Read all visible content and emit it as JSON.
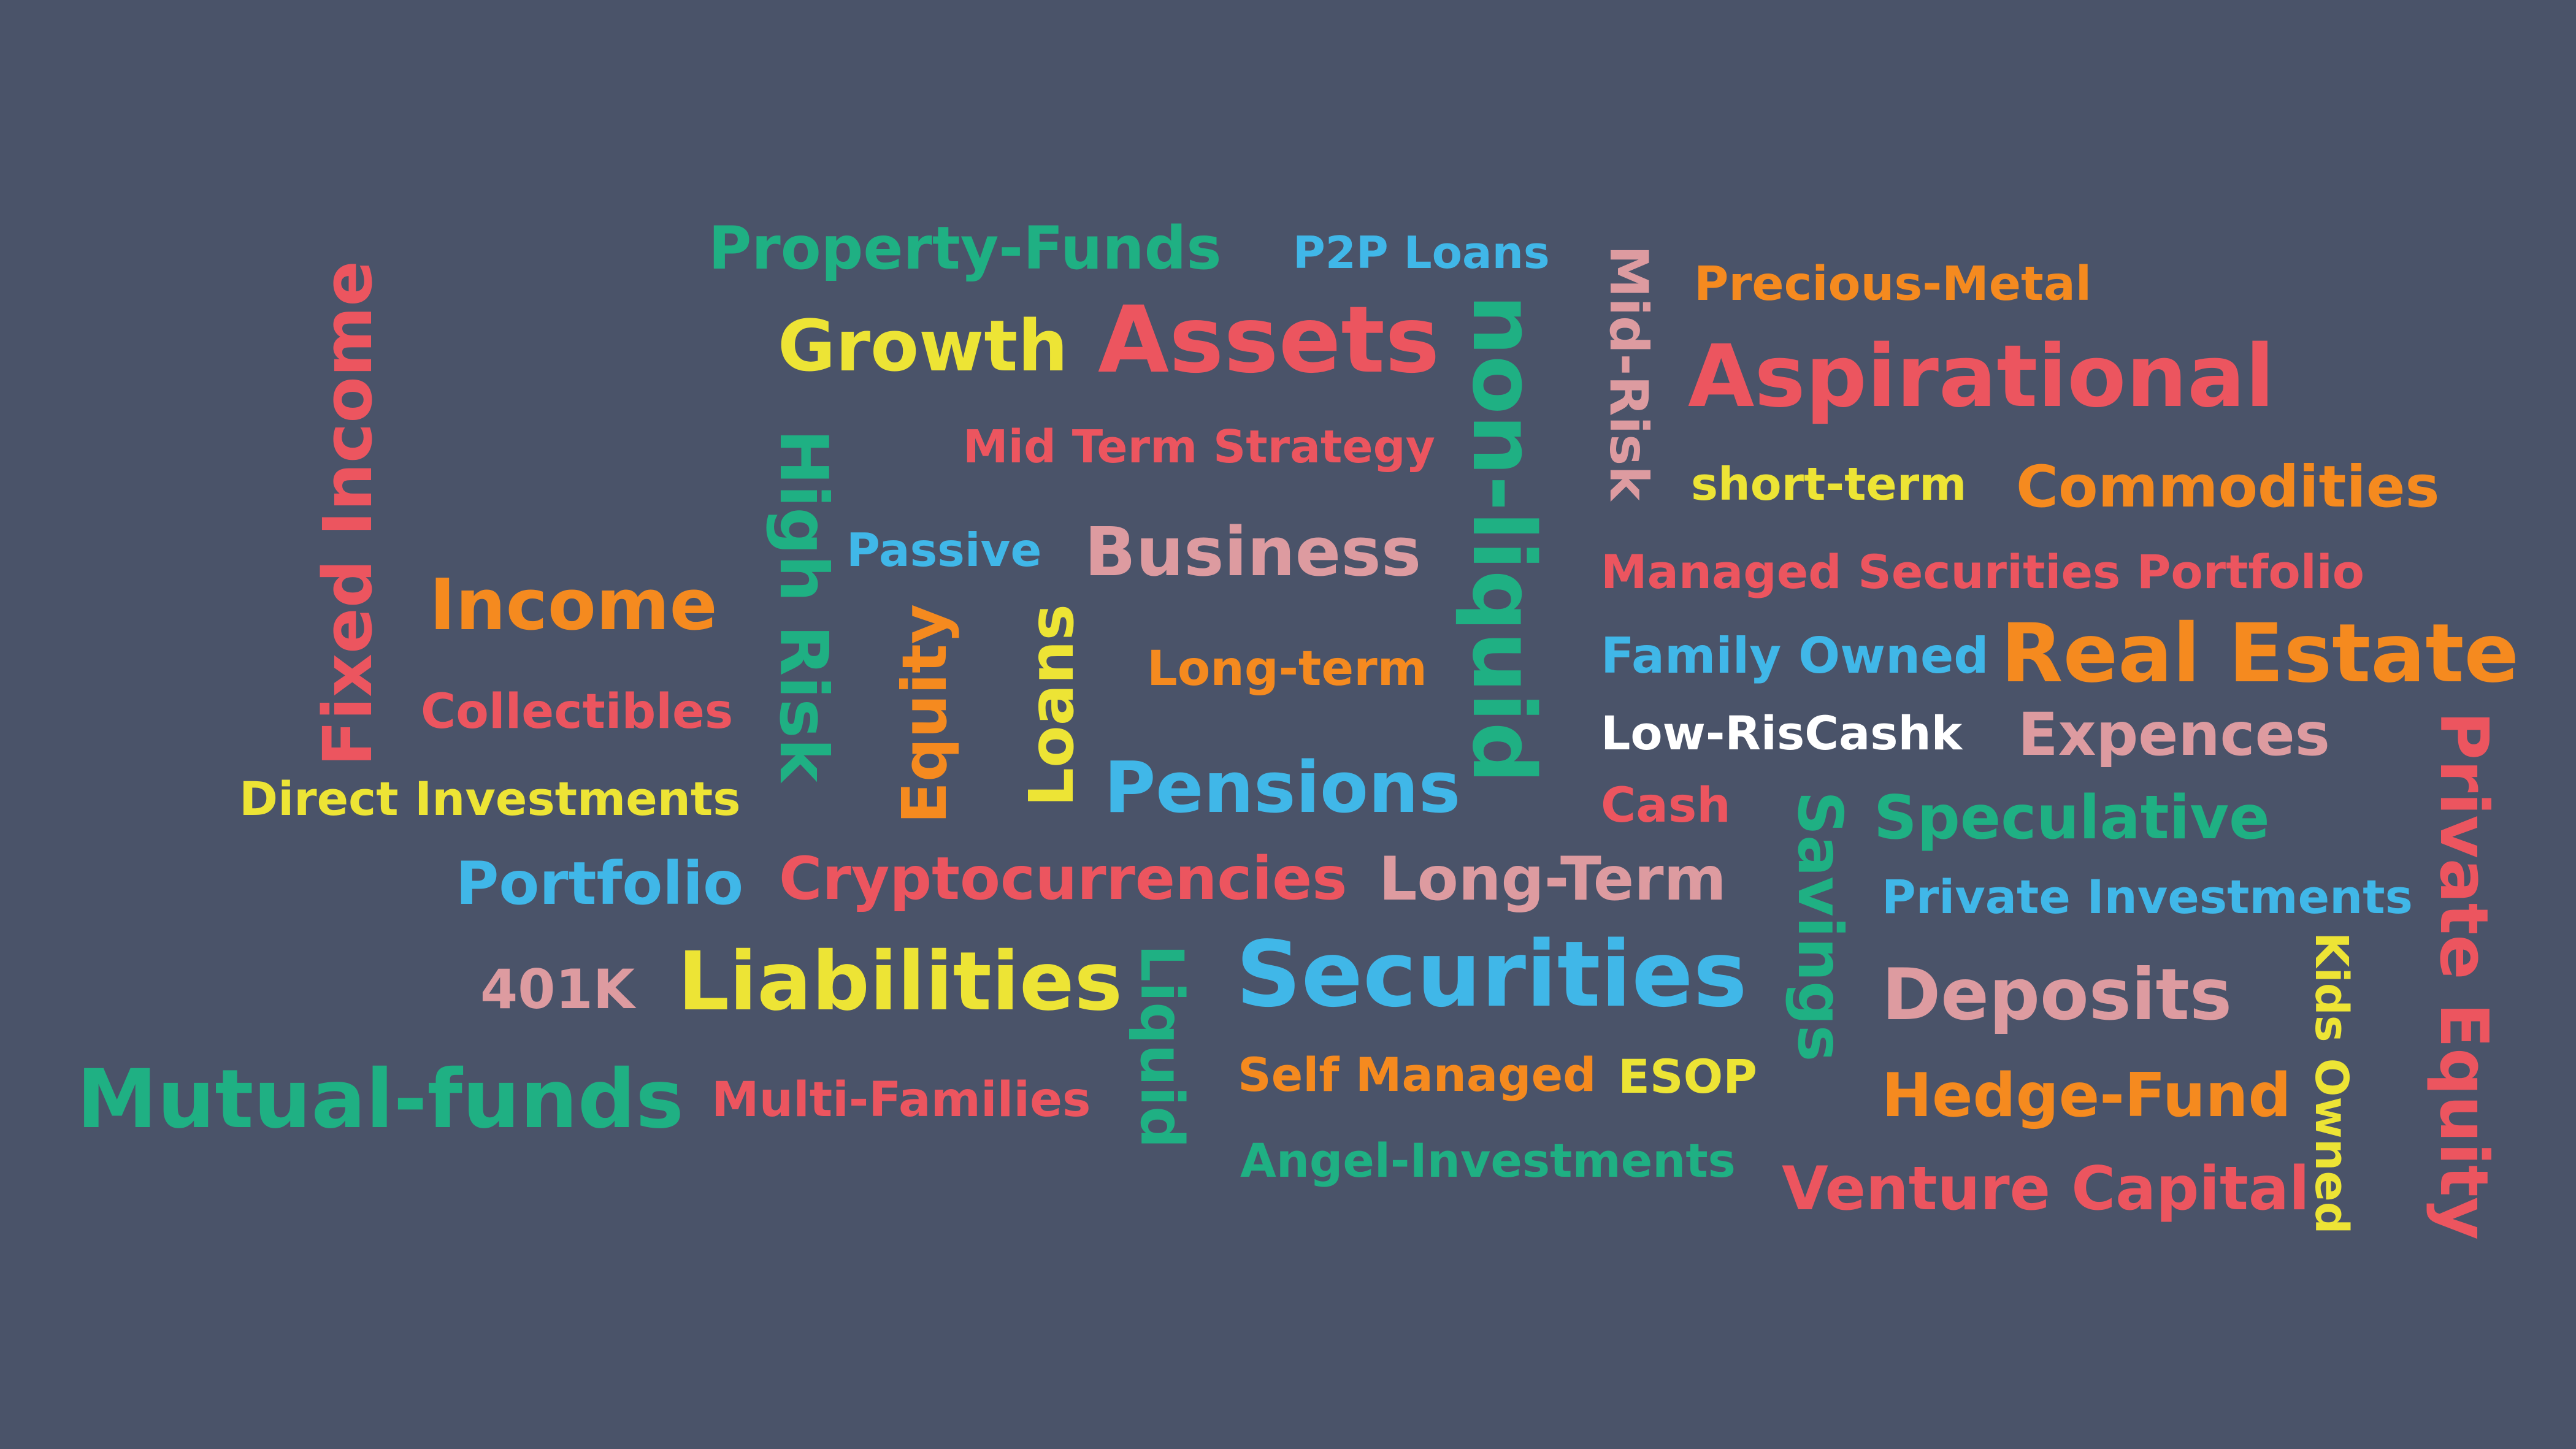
{
  "colors": {
    "background": "#4a5369",
    "orange": "#f58a1f",
    "red": "#ec555f",
    "green": "#1fb083",
    "yellow": "#ede435",
    "blue": "#40b7e8",
    "pink": "#dd9ba0",
    "white": "#ffffff"
  },
  "words": {
    "property_funds": "Property-Funds",
    "p2p_loans": "P2P Loans",
    "precious_metal": "Precious-Metal",
    "growth": "Growth",
    "assets": "Assets",
    "aspirational": "Aspirational",
    "mid_term_strategy": "Mid Term Strategy",
    "short_term": "short-term",
    "commodities": "Commodities",
    "passive": "Passive",
    "business": "Business",
    "managed_securities_portfolio": "Managed Securities Portfolio",
    "income": "Income",
    "family_owned": "Family Owned",
    "real_estate": "Real Estate",
    "long_term_lower": "Long-term",
    "collectibles": "Collectibles",
    "low_riscashk": "Low-RisCashk",
    "expences": "Expences",
    "pensions": "Pensions",
    "direct_investments": "Direct Investments",
    "cash": "Cash",
    "speculative": "Speculative",
    "portfolio": "Portfolio",
    "cryptocurrencies": "Cryptocurrencies",
    "long_term_upper": "Long-Term",
    "private_investments": "Private Investments",
    "k401": "401K",
    "liabilities": "Liabilities",
    "securities": "Securities",
    "deposits": "Deposits",
    "mutual_funds": "Mutual-funds",
    "multi_families": "Multi-Families",
    "self_managed": "Self Managed",
    "esop": "ESOP",
    "hedge_fund": "Hedge-Fund",
    "angel_investments": "Angel-Investments",
    "venture_capital": "Venture Capital",
    "fixed_income": "Fixed Income",
    "high_risk": "High Risk",
    "equity": "Equity",
    "loans": "Loans",
    "non_liquid": "non-liquid",
    "mid_risk": "Mid-Risk",
    "savings": "Savings",
    "liquid": "Liquid",
    "kids_owned": "Kids Owned",
    "private_equity": "Private Equity"
  }
}
